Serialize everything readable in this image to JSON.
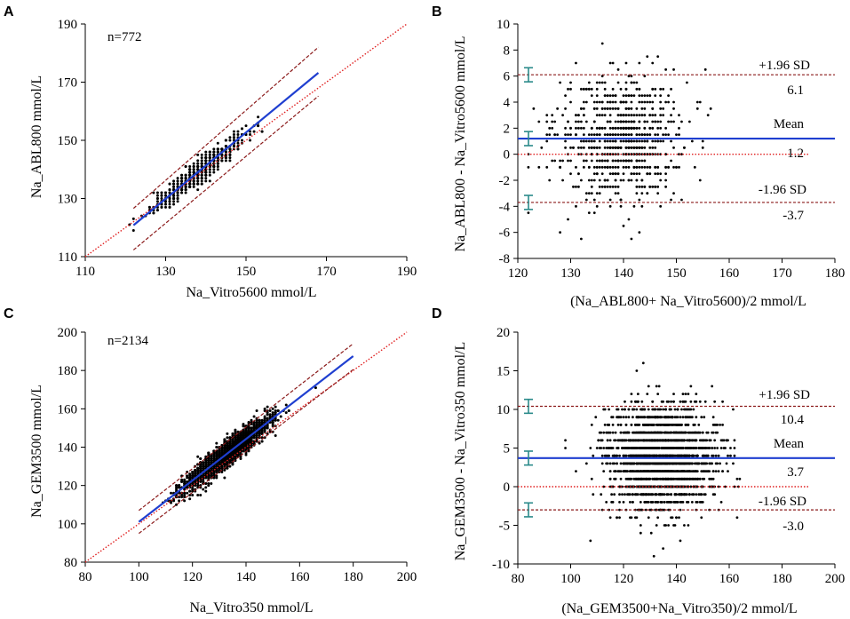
{
  "colors": {
    "fit_line": "#1f3fd0",
    "identity_line": "#e02020",
    "limit_line": "#8b1a1a",
    "points": "#000000",
    "ci_bar": "#2a8a8a"
  },
  "chart_data": [
    {
      "id": "A",
      "panel_label": "A",
      "type": "scatter",
      "annotation": "n=772",
      "xlabel": "Na_Vitro5600 mmol/L",
      "ylabel": "Na_ABL800 mmol/L",
      "xlim": [
        110,
        190
      ],
      "ylim": [
        110,
        190
      ],
      "xticks": [
        110,
        130,
        150,
        170,
        190
      ],
      "yticks": [
        110,
        130,
        150,
        170,
        190
      ],
      "point_count": 772,
      "cluster": {
        "x_center": 138,
        "x_spread": 5.5,
        "x_min": 121,
        "x_max": 168,
        "slope": 1.12,
        "intercept": -15.7,
        "resid_sd": 1.9
      },
      "identity_line": {
        "x": [
          110,
          190
        ],
        "y": [
          110,
          190
        ]
      },
      "fit_line": {
        "x": [
          122,
          168
        ],
        "y": [
          120.8,
          173.2
        ]
      },
      "upper_band": {
        "x": [
          122,
          168
        ],
        "y": [
          126.6,
          182.0
        ]
      },
      "lower_band": {
        "x": [
          122,
          168
        ],
        "y": [
          112.3,
          165.2
        ]
      }
    },
    {
      "id": "B",
      "panel_label": "B",
      "type": "bland-altman",
      "xlabel": "(Na_ABL800+ Na_Vitro5600)/2 mmol/L",
      "ylabel": "Na_ABL800 - Na_Vitro5600 mmol/L",
      "xlim": [
        120,
        180
      ],
      "ylim": [
        -8,
        10
      ],
      "xticks": [
        120,
        130,
        140,
        150,
        160,
        170,
        180
      ],
      "yticks": [
        -8,
        -6,
        -4,
        -2,
        0,
        2,
        4,
        6,
        8,
        10
      ],
      "point_count": 772,
      "cluster": {
        "x_center": 139,
        "x_spread": 6,
        "x_min": 122,
        "x_max": 172,
        "y_center": 1.2,
        "y_sd": 2.4
      },
      "mean": 1.2,
      "upper_loa": 6.1,
      "lower_loa": -3.7,
      "zero_line": {
        "x": [
          120,
          175
        ],
        "y": [
          0,
          0
        ]
      },
      "labels": {
        "upper": "+1.96 SD",
        "upper_value": "6.1",
        "mean": "Mean",
        "mean_value": "1.2",
        "lower": "-1.96 SD",
        "lower_value": "-3.7"
      }
    },
    {
      "id": "C",
      "panel_label": "C",
      "type": "scatter",
      "annotation": "n=2134",
      "xlabel": "Na_Vitro350 mmol/L",
      "ylabel": "Na_GEM3500 mmol/L",
      "xlim": [
        80,
        200
      ],
      "ylim": [
        80,
        200
      ],
      "xticks": [
        80,
        100,
        120,
        140,
        160,
        180,
        200
      ],
      "yticks": [
        80,
        100,
        120,
        140,
        160,
        180,
        200
      ],
      "point_count": 2134,
      "cluster": {
        "x_center": 133,
        "x_spread": 8,
        "x_min": 100,
        "x_max": 180,
        "slope": 1.08,
        "intercept": -6.9,
        "resid_sd": 3.3
      },
      "identity_line": {
        "x": [
          80,
          200
        ],
        "y": [
          80,
          200
        ]
      },
      "fit_line": {
        "x": [
          100,
          180
        ],
        "y": [
          101.0,
          187.5
        ]
      },
      "upper_band": {
        "x": [
          100,
          180
        ],
        "y": [
          107.0,
          194.0
        ]
      },
      "lower_band": {
        "x": [
          100,
          180
        ],
        "y": [
          95.0,
          180.5
        ]
      }
    },
    {
      "id": "D",
      "panel_label": "D",
      "type": "bland-altman",
      "xlabel": "(Na_GEM3500+Na_Vitro350)/2  mmol/L",
      "ylabel": "Na_GEM3500 - Na_Vitro350  mmol/L",
      "xlim": [
        80,
        200
      ],
      "ylim": [
        -10,
        20
      ],
      "xticks": [
        80,
        100,
        120,
        140,
        160,
        180,
        200
      ],
      "yticks": [
        -10,
        -5,
        0,
        5,
        10,
        15,
        20
      ],
      "point_count": 2134,
      "cluster": {
        "x_center": 134,
        "x_spread": 10,
        "x_min": 96,
        "x_max": 182,
        "y_center": 3.7,
        "y_sd": 3.4,
        "y_step": 1
      },
      "mean": 3.7,
      "upper_loa": 10.4,
      "lower_loa": -3.0,
      "zero_line": {
        "x": [
          80,
          190
        ],
        "y": [
          0,
          0
        ]
      },
      "labels": {
        "upper": "+1.96 SD",
        "upper_value": "10.4",
        "mean": "Mean",
        "mean_value": "3.7",
        "lower": "-1.96 SD",
        "lower_value": "-3.0"
      }
    }
  ]
}
